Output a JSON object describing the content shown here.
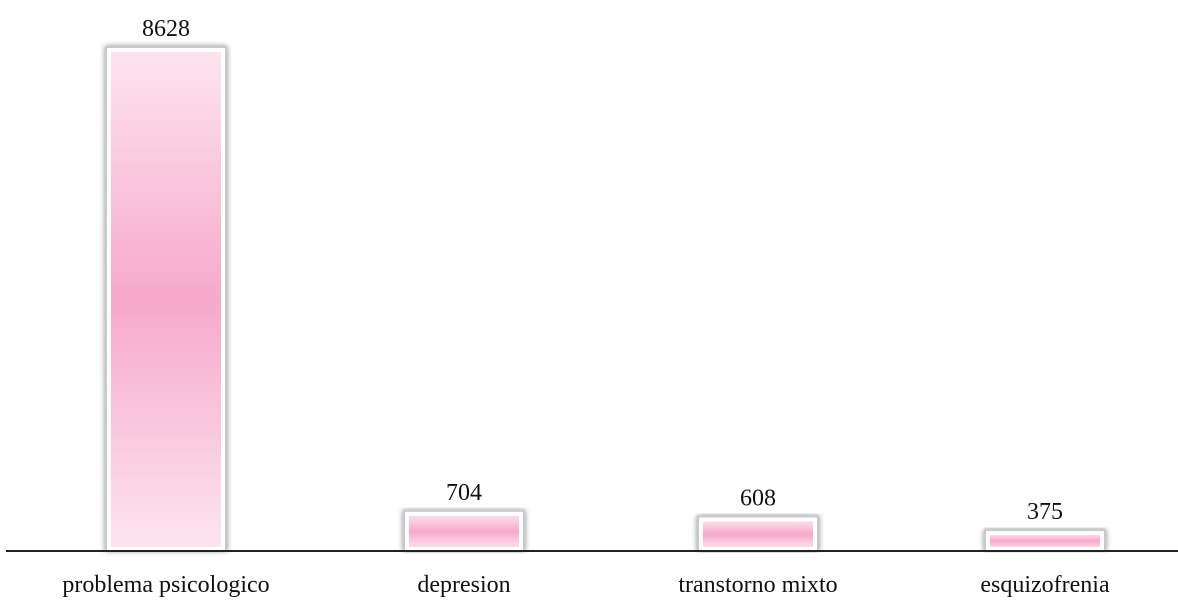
{
  "chart_data": {
    "type": "bar",
    "title": "",
    "xlabel": "",
    "ylabel": "",
    "categories": [
      "problema psicologico",
      "depresion",
      "transtorno mixto",
      "esquizofrenia"
    ],
    "values": [
      8628,
      704,
      608,
      375
    ],
    "data_labels": [
      "8628",
      "704",
      "608",
      "375"
    ],
    "ylim": [
      0,
      8628
    ],
    "grid": false,
    "legend": "none",
    "colors": {
      "bar_fill_light": "#fde4ef",
      "bar_fill_mid": "#f7a9cb",
      "bar_frame": "#c9c9c9",
      "axis": "#222222"
    }
  }
}
